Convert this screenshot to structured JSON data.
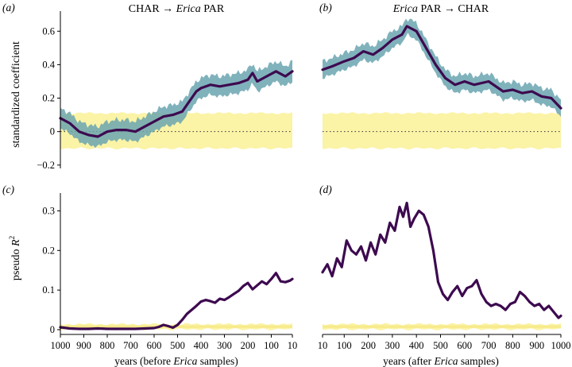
{
  "colors": {
    "line": "#3d0a4f",
    "ribbon": "#6aa4b0",
    "null_band": "#fbf3a6",
    "null_line": "#f7ea8a",
    "zero_line": "#333333"
  },
  "figure": {
    "titles": {
      "a": {
        "pre": "CHAR → ",
        "em": "Erica",
        "post": " PAR"
      },
      "b": {
        "pre": "",
        "em": "Erica",
        "post": " PAR → CHAR"
      }
    },
    "panel_labels": {
      "a": "(a)",
      "b": "(b)",
      "c": "(c)",
      "d": "(d)"
    },
    "ylabel_top": "standardized coefficient",
    "ylabel_bottom_text": "pseudo ",
    "ylabel_bottom_var": "R",
    "ylabel_bottom_sup": "2",
    "xlabel_left": {
      "pre": "years (before ",
      "em": "Erica",
      "post": " samples)"
    },
    "xlabel_right": {
      "pre": "years (after ",
      "em": "Erica",
      "post": " samples)"
    }
  },
  "chart_data": [
    {
      "id": "a",
      "type": "line",
      "title": "CHAR → Erica PAR",
      "ylabel": "standardized coefficient",
      "xlim": [
        1000,
        10
      ],
      "ylim": [
        -0.22,
        0.72
      ],
      "xticks": [
        1000,
        900,
        800,
        700,
        600,
        500,
        400,
        300,
        200,
        100,
        10
      ],
      "yticks": [
        -0.2,
        0,
        0.2,
        0.4,
        0.6
      ],
      "ytick_labels": [
        "−0.2",
        "0",
        "0.2",
        "0.4",
        "0.6"
      ],
      "zero_line": true,
      "null_band": [
        -0.1,
        0.11
      ],
      "ribbon_halfwidth": 0.06,
      "series": [
        {
          "x": [
            1000,
            960,
            920,
            880,
            840,
            800,
            760,
            720,
            680,
            640,
            600,
            560,
            520,
            480,
            440,
            420,
            400,
            360,
            320,
            280,
            240,
            200,
            180,
            160,
            120,
            80,
            40,
            10
          ],
          "y": [
            0.08,
            0.05,
            0.0,
            -0.02,
            -0.03,
            0.0,
            0.01,
            0.01,
            0.0,
            0.03,
            0.06,
            0.09,
            0.1,
            0.12,
            0.2,
            0.24,
            0.26,
            0.28,
            0.27,
            0.28,
            0.29,
            0.31,
            0.35,
            0.3,
            0.33,
            0.36,
            0.33,
            0.36
          ]
        }
      ]
    },
    {
      "id": "b",
      "type": "line",
      "title": "Erica PAR → CHAR",
      "xlim": [
        10,
        1000
      ],
      "ylim": [
        -0.22,
        0.72
      ],
      "xticks": [
        10,
        100,
        200,
        300,
        400,
        500,
        600,
        700,
        800,
        900,
        1000
      ],
      "zero_line": true,
      "null_band": [
        -0.1,
        0.11
      ],
      "ribbon_halfwidth": 0.05,
      "series": [
        {
          "x": [
            10,
            50,
            100,
            140,
            180,
            220,
            260,
            300,
            340,
            360,
            400,
            440,
            480,
            520,
            560,
            600,
            640,
            700,
            760,
            800,
            840,
            880,
            920,
            960,
            1000
          ],
          "y": [
            0.37,
            0.39,
            0.42,
            0.44,
            0.48,
            0.46,
            0.5,
            0.55,
            0.58,
            0.63,
            0.6,
            0.5,
            0.4,
            0.32,
            0.28,
            0.3,
            0.28,
            0.3,
            0.24,
            0.25,
            0.23,
            0.24,
            0.21,
            0.2,
            0.14
          ]
        }
      ]
    },
    {
      "id": "c",
      "type": "line",
      "ylabel": "pseudo R^2",
      "xlim": [
        1000,
        10
      ],
      "ylim": [
        -0.012,
        0.345
      ],
      "xticks": [
        1000,
        900,
        800,
        700,
        600,
        500,
        400,
        300,
        200,
        100,
        10
      ],
      "xtick_labels": [
        "1000",
        "900",
        "800",
        "700",
        "600",
        "500",
        "400",
        "300",
        "200",
        "100",
        "10"
      ],
      "yticks": [
        0,
        0.1,
        0.2,
        0.3
      ],
      "ytick_labels": [
        "0",
        "0.1",
        "0.2",
        "0.3"
      ],
      "xlabel": "years (before Erica samples)",
      "null_band": [
        0.001,
        0.014
      ],
      "series": [
        {
          "x": [
            1000,
            960,
            920,
            880,
            840,
            800,
            760,
            720,
            680,
            640,
            600,
            580,
            560,
            540,
            520,
            500,
            480,
            460,
            440,
            420,
            400,
            380,
            360,
            340,
            320,
            300,
            280,
            260,
            240,
            220,
            200,
            180,
            160,
            140,
            120,
            100,
            80,
            60,
            40,
            20,
            10
          ],
          "y": [
            0.006,
            0.003,
            0.002,
            0.002,
            0.003,
            0.002,
            0.002,
            0.002,
            0.002,
            0.003,
            0.004,
            0.007,
            0.012,
            0.009,
            0.005,
            0.012,
            0.025,
            0.04,
            0.05,
            0.06,
            0.071,
            0.075,
            0.072,
            0.068,
            0.078,
            0.075,
            0.082,
            0.09,
            0.098,
            0.11,
            0.118,
            0.102,
            0.112,
            0.122,
            0.115,
            0.128,
            0.143,
            0.122,
            0.12,
            0.124,
            0.128
          ]
        }
      ]
    },
    {
      "id": "d",
      "type": "line",
      "xlim": [
        10,
        1000
      ],
      "ylim": [
        -0.012,
        0.345
      ],
      "xticks": [
        10,
        100,
        200,
        300,
        400,
        500,
        600,
        700,
        800,
        900,
        1000
      ],
      "xtick_labels": [
        "10",
        "100",
        "200",
        "300",
        "400",
        "500",
        "600",
        "700",
        "800",
        "900",
        "1000"
      ],
      "xlabel": "years (after Erica samples)",
      "null_band": [
        0.001,
        0.014
      ],
      "series": [
        {
          "x": [
            10,
            30,
            50,
            70,
            90,
            110,
            130,
            150,
            170,
            190,
            210,
            230,
            250,
            270,
            290,
            310,
            330,
            345,
            360,
            375,
            390,
            410,
            430,
            450,
            470,
            490,
            510,
            530,
            550,
            570,
            590,
            610,
            630,
            650,
            670,
            690,
            710,
            730,
            750,
            770,
            790,
            810,
            830,
            850,
            870,
            890,
            910,
            930,
            950,
            970,
            990,
            1000
          ],
          "y": [
            0.145,
            0.165,
            0.135,
            0.18,
            0.158,
            0.225,
            0.2,
            0.19,
            0.21,
            0.175,
            0.22,
            0.19,
            0.24,
            0.22,
            0.27,
            0.25,
            0.31,
            0.285,
            0.32,
            0.26,
            0.28,
            0.3,
            0.29,
            0.26,
            0.2,
            0.12,
            0.09,
            0.075,
            0.095,
            0.11,
            0.085,
            0.105,
            0.11,
            0.125,
            0.09,
            0.07,
            0.06,
            0.065,
            0.06,
            0.05,
            0.065,
            0.07,
            0.095,
            0.085,
            0.07,
            0.06,
            0.065,
            0.05,
            0.06,
            0.045,
            0.03,
            0.035
          ]
        }
      ]
    }
  ]
}
